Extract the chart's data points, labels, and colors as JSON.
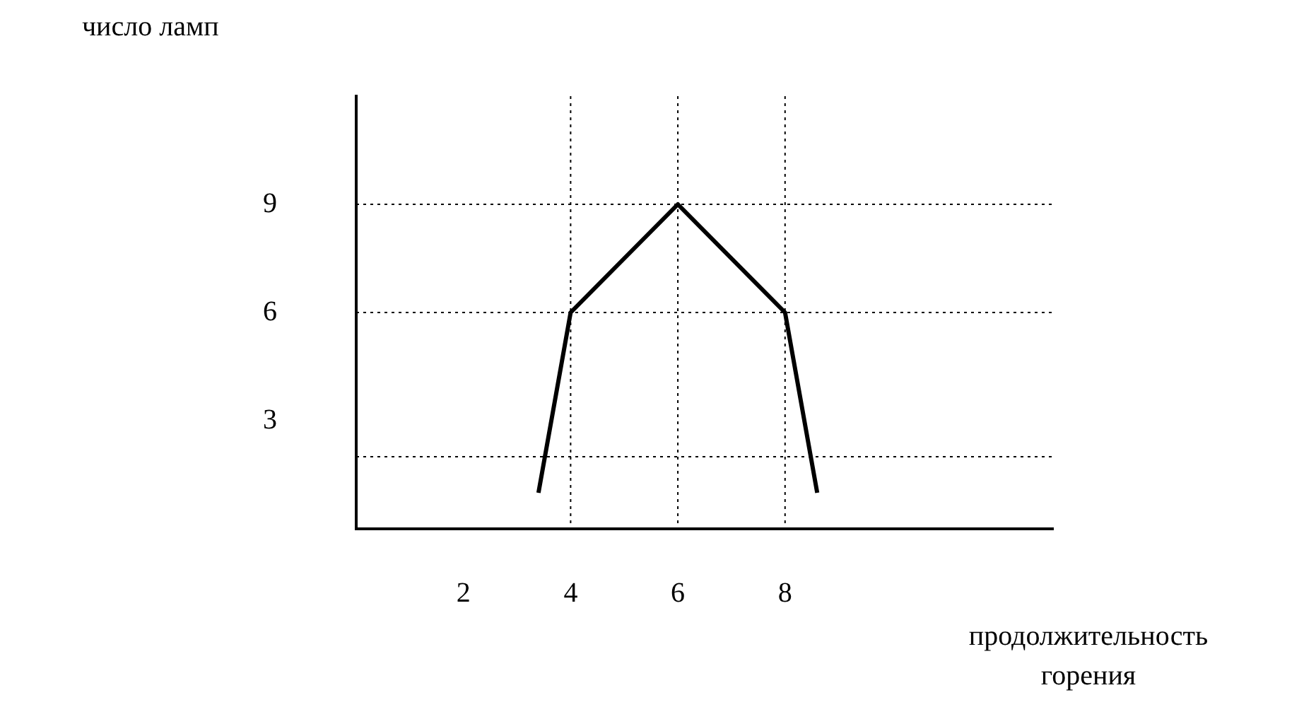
{
  "chart_data": {
    "type": "line",
    "xlabel": "продолжительность горения",
    "ylabel": "число ламп",
    "x": [
      3.4,
      4,
      6,
      8,
      8.6
    ],
    "series": [
      {
        "color": "#000000",
        "values": [
          1,
          6,
          9,
          6,
          1
        ]
      }
    ],
    "xlim": [
      0,
      13
    ],
    "xticks": [
      2,
      4,
      6,
      8
    ],
    "ylim": [
      0,
      12
    ],
    "yticks": [
      3,
      6,
      9
    ],
    "grid": false,
    "legend": false,
    "marker": "none",
    "line_style": "solid",
    "ref_lines": [
      {
        "axis": "y",
        "value": 9,
        "line_style": "dotted"
      },
      {
        "axis": "y",
        "value": 6,
        "line_style": "dotted"
      },
      {
        "axis": "y",
        "value": 2,
        "line_style": "dotted"
      },
      {
        "axis": "x",
        "value": 4,
        "line_style": "dotted"
      },
      {
        "axis": "x",
        "value": 6,
        "line_style": "dotted"
      },
      {
        "axis": "x",
        "value": 8,
        "line_style": "dotted"
      }
    ]
  }
}
